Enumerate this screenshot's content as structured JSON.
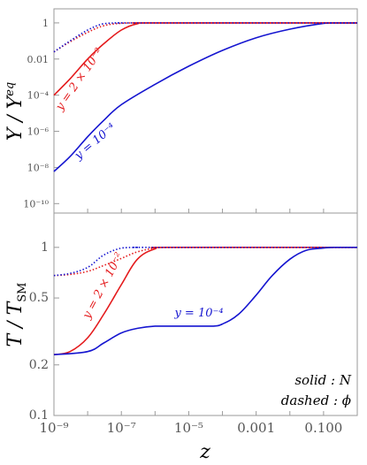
{
  "chart_data": [
    {
      "type": "line",
      "panel": "top",
      "ylabel": "Y / Yeq",
      "yscale": "log",
      "xscale": "log",
      "xlim": [
        1e-09,
        1
      ],
      "ylim": [
        3e-11,
        6
      ],
      "yticks": [
        {
          "v": 1,
          "label": "1"
        },
        {
          "v": 0.01,
          "label": "0.01"
        },
        {
          "v": 0.0001,
          "label": "10⁻⁴"
        },
        {
          "v": 1e-06,
          "label": "10⁻⁶"
        },
        {
          "v": 1e-08,
          "label": "10⁻⁸"
        },
        {
          "v": 1e-10,
          "label": "10⁻¹⁰"
        }
      ],
      "series": [
        {
          "color": "#e41a1c",
          "style": "solid",
          "x": [
            1e-09,
            3e-09,
            1e-08,
            3e-08,
            1e-07,
            3e-07,
            1e-06,
            1
          ],
          "y": [
            0.0001,
            0.0008,
            0.01,
            0.07,
            0.4,
            0.9,
            1,
            1
          ]
        },
        {
          "color": "#1515d0",
          "style": "solid",
          "x": [
            1e-09,
            3e-09,
            1e-08,
            3e-08,
            1e-07,
            1e-06,
            1e-05,
            0.0001,
            0.001,
            0.01,
            0.1,
            0.2,
            1
          ],
          "y": [
            6e-09,
            4e-08,
            5e-07,
            4e-06,
            3e-05,
            0.0004,
            0.004,
            0.03,
            0.15,
            0.45,
            0.95,
            1,
            1
          ]
        },
        {
          "color": "#e41a1c",
          "style": "dashed",
          "x": [
            1e-09,
            3e-09,
            1e-08,
            3e-08,
            1e-07,
            3e-07,
            1e-06,
            1
          ],
          "y": [
            0.025,
            0.09,
            0.3,
            0.7,
            0.95,
            1,
            1,
            1
          ]
        },
        {
          "color": "#1515d0",
          "style": "dashed",
          "x": [
            1e-09,
            3e-09,
            1e-08,
            3e-08,
            1e-07,
            3e-07,
            1
          ],
          "y": [
            0.025,
            0.1,
            0.4,
            0.9,
            1,
            1,
            1
          ]
        }
      ],
      "annotations": [
        {
          "text": "y = 2 × 10⁻²",
          "color": "#e41a1c"
        },
        {
          "text": "y = 10⁻⁴",
          "color": "#1515d0"
        }
      ]
    },
    {
      "type": "line",
      "panel": "bottom",
      "ylabel": "T / TSM",
      "xlabel": "z",
      "yscale": "log",
      "xscale": "log",
      "xlim": [
        1e-09,
        1
      ],
      "ylim": [
        0.1,
        1.6
      ],
      "yticks": [
        {
          "v": 1,
          "label": "1"
        },
        {
          "v": 0.5,
          "label": "0.5"
        },
        {
          "v": 0.2,
          "label": "0.2"
        },
        {
          "v": 0.1,
          "label": "0.1"
        }
      ],
      "xticks": [
        {
          "v": 1e-09,
          "label": "10⁻⁹"
        },
        {
          "v": 1e-07,
          "label": "10⁻⁷"
        },
        {
          "v": 1e-05,
          "label": "10⁻⁵"
        },
        {
          "v": 0.001,
          "label": "0.001"
        },
        {
          "v": 0.1,
          "label": "0.100"
        }
      ],
      "series": [
        {
          "color": "#e41a1c",
          "style": "solid",
          "x": [
            1e-09,
            3e-09,
            1e-08,
            3e-08,
            1e-07,
            3e-07,
            1e-06,
            3e-06,
            1
          ],
          "y": [
            0.23,
            0.24,
            0.29,
            0.4,
            0.6,
            0.85,
            0.98,
            1,
            1
          ]
        },
        {
          "color": "#1515d0",
          "style": "solid",
          "x": [
            1e-09,
            1e-08,
            3e-08,
            1e-07,
            3e-07,
            1e-06,
            1e-05,
            5e-05,
            0.0001,
            0.0003,
            0.001,
            0.003,
            0.01,
            0.03,
            0.1,
            0.2,
            1
          ],
          "y": [
            0.23,
            0.24,
            0.27,
            0.31,
            0.33,
            0.34,
            0.34,
            0.34,
            0.35,
            0.4,
            0.52,
            0.68,
            0.85,
            0.96,
            0.99,
            1,
            1
          ]
        },
        {
          "color": "#e41a1c",
          "style": "dashed",
          "x": [
            1e-09,
            3e-09,
            1e-08,
            3e-08,
            1e-07,
            3e-07,
            1e-06,
            3e-06,
            1
          ],
          "y": [
            0.68,
            0.69,
            0.72,
            0.78,
            0.86,
            0.94,
            0.99,
            1,
            1
          ]
        },
        {
          "color": "#1515d0",
          "style": "dashed",
          "x": [
            1e-09,
            3e-09,
            1e-08,
            3e-08,
            1e-07,
            3e-07,
            1e-06,
            1
          ],
          "y": [
            0.68,
            0.7,
            0.76,
            0.9,
            0.99,
            1,
            1,
            1
          ]
        }
      ],
      "annotations": [
        {
          "text": "y = 2 × 10⁻²",
          "color": "#e41a1c"
        },
        {
          "text": "y = 10⁻⁴",
          "color": "#1515d0"
        }
      ],
      "legend": {
        "line1": "solid : N",
        "line2": "dashed : ϕ",
        "position": "bottom-right"
      }
    }
  ]
}
